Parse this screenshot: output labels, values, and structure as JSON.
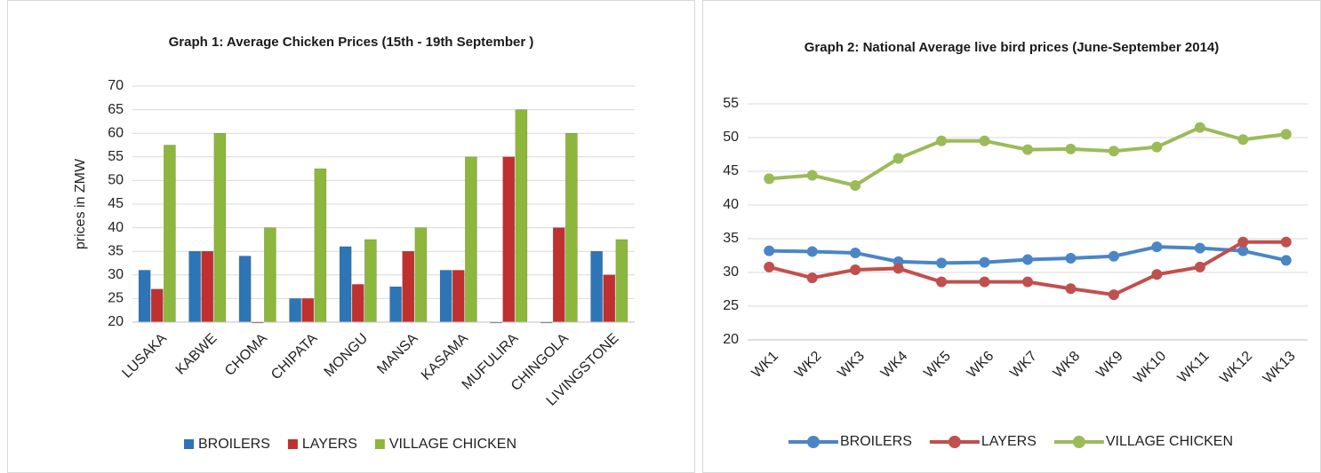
{
  "chart_data": [
    {
      "type": "bar",
      "title": "Graph 1: Average Chicken Prices (15th - 19th September )",
      "y_label": "prices in ZMW",
      "categories": [
        "LUSAKA",
        "KABWE",
        "CHOMA",
        "CHIPATA",
        "MONGU",
        "MANSA",
        "KASAMA",
        "MUFULIRA",
        "CHINGOLA",
        "LIVINGSTONE"
      ],
      "series": [
        {
          "name": "BROILERS",
          "color": "#2e75b6",
          "values": [
            31,
            35,
            34,
            25,
            36,
            27.5,
            31,
            20,
            20,
            35
          ]
        },
        {
          "name": "LAYERS",
          "color": "#c0302e",
          "values": [
            27,
            35,
            20,
            25,
            28,
            35,
            31,
            55,
            40,
            30
          ]
        },
        {
          "name": "VILLAGE CHICKEN",
          "color": "#8db63c",
          "values": [
            57.5,
            60,
            40,
            52.5,
            37.5,
            40,
            55,
            65,
            60,
            37.5
          ]
        }
      ],
      "ylim": [
        20,
        70
      ],
      "yticks": [
        20,
        25,
        30,
        35,
        40,
        45,
        50,
        55,
        60,
        65,
        70
      ],
      "grid": true,
      "legend": "bottom"
    },
    {
      "type": "line",
      "title": "Graph 2: National Average live bird prices (June-September 2014)",
      "categories": [
        "WK1",
        "WK2",
        "WK3",
        "WK4",
        "WK5",
        "WK6",
        "WK7",
        "WK8",
        "WK9",
        "WK10",
        "WK11",
        "WK12",
        "WK13"
      ],
      "series": [
        {
          "name": "BROILERS",
          "color": "#4a86c6",
          "values": [
            33.2,
            33.1,
            32.9,
            31.6,
            31.4,
            31.5,
            31.9,
            32.1,
            32.4,
            33.8,
            33.6,
            33.2,
            31.8
          ]
        },
        {
          "name": "LAYERS",
          "color": "#c0504d",
          "values": [
            30.8,
            29.2,
            30.4,
            30.6,
            28.6,
            28.6,
            28.6,
            27.6,
            26.7,
            29.7,
            30.8,
            34.5,
            34.5
          ]
        },
        {
          "name": "VILLAGE CHICKEN",
          "color": "#9bbb59",
          "values": [
            43.9,
            44.4,
            42.9,
            46.9,
            49.5,
            49.5,
            48.2,
            48.3,
            48.0,
            48.6,
            51.5,
            49.7,
            50.5
          ]
        }
      ],
      "ylim": [
        20,
        55
      ],
      "yticks": [
        20,
        25,
        30,
        35,
        40,
        45,
        50,
        55
      ],
      "grid": true,
      "legend": "bottom"
    }
  ]
}
